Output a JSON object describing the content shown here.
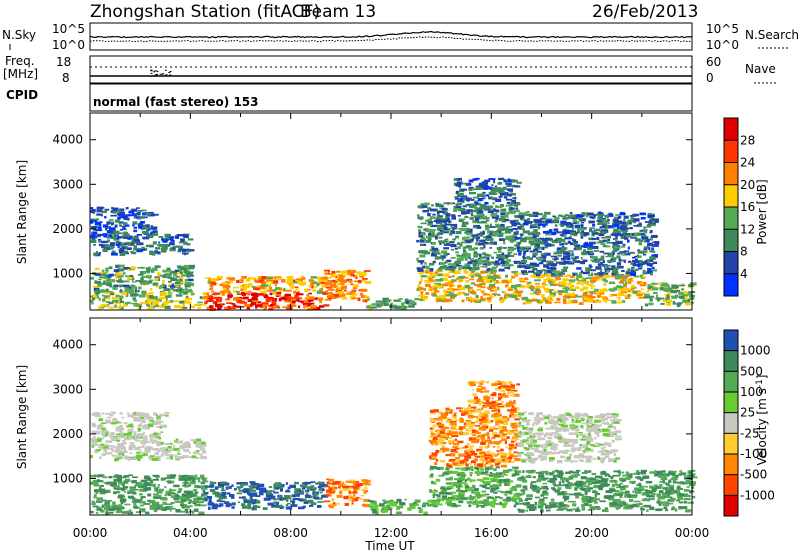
{
  "header": {
    "station": "Zhongshan Station (fitACF)",
    "beam": "Beam 13",
    "date": "26/Feb/2013"
  },
  "panels": {
    "nsky": {
      "label": "N.Sky",
      "left_ticks": [
        "10^5",
        "10^0"
      ],
      "right_label": "N.Search",
      "right_ticks": [
        "10^5",
        "10^0"
      ]
    },
    "freq": {
      "label_line1": "Freq.",
      "label_line2": "[MHz]",
      "left_ticks": [
        "18",
        "8"
      ],
      "right_label": "Nave",
      "right_ticks": [
        "60",
        "0"
      ]
    },
    "cpid": {
      "label": "CPID",
      "text": "normal (fast stereo) 153"
    }
  },
  "chart_data": [
    {
      "type": "heatmap",
      "name": "power",
      "ylabel": "Slant Range [km]",
      "xlabel": "",
      "ylim": [
        180,
        4600
      ],
      "y_ticks": [
        1000,
        2000,
        3000,
        4000
      ],
      "xlim_hours": [
        0,
        24
      ],
      "colorbar": {
        "label": "Power [dB]",
        "range": [
          0,
          32
        ],
        "tick_values": [
          4,
          8,
          12,
          16,
          20,
          24,
          28
        ],
        "tick_labels": [
          "4",
          "8",
          "12",
          "16",
          "20",
          "24",
          "28"
        ],
        "colors": [
          "#0033ff",
          "#2244aa",
          "#3f8a5a",
          "#55aa55",
          "#ffcc00",
          "#ff7f00",
          "#ff3300",
          "#e00000"
        ]
      },
      "regions": [
        {
          "t": [
            0.0,
            4.0
          ],
          "r": [
            1450,
            1900
          ],
          "power": 7
        },
        {
          "t": [
            0.0,
            2.5
          ],
          "r": [
            1900,
            2500
          ],
          "power": 6
        },
        {
          "t": [
            0.0,
            4.0
          ],
          "r": [
            600,
            1200
          ],
          "power": 12
        },
        {
          "t": [
            0.0,
            4.5
          ],
          "r": [
            250,
            600
          ],
          "power": 15
        },
        {
          "t": [
            4.5,
            9.3
          ],
          "r": [
            220,
            600
          ],
          "power": 27
        },
        {
          "t": [
            4.5,
            9.3
          ],
          "r": [
            600,
            950
          ],
          "power": 20
        },
        {
          "t": [
            9.3,
            11.0
          ],
          "r": [
            400,
            1100
          ],
          "power": 22
        },
        {
          "t": [
            11.0,
            13.0
          ],
          "r": [
            250,
            500
          ],
          "power": 12
        },
        {
          "t": [
            13.0,
            17.0
          ],
          "r": [
            400,
            1100
          ],
          "power": 18
        },
        {
          "t": [
            13.0,
            17.0
          ],
          "r": [
            1100,
            2600
          ],
          "power": 10
        },
        {
          "t": [
            14.5,
            17.0
          ],
          "r": [
            2600,
            3150
          ],
          "power": 7
        },
        {
          "t": [
            17.0,
            22.0
          ],
          "r": [
            350,
            1000
          ],
          "power": 18
        },
        {
          "t": [
            17.0,
            22.5
          ],
          "r": [
            1000,
            2400
          ],
          "power": 8
        },
        {
          "t": [
            22.0,
            24.0
          ],
          "r": [
            300,
            800
          ],
          "power": 13
        }
      ]
    },
    {
      "type": "heatmap",
      "name": "velocity",
      "ylabel": "Slant Range [km]",
      "xlabel": "Time UT",
      "ylim": [
        180,
        4600
      ],
      "y_ticks": [
        1000,
        2000,
        3000,
        4000
      ],
      "xlim_hours": [
        0,
        24
      ],
      "x_ticks": [
        "00:00",
        "04:00",
        "08:00",
        "12:00",
        "16:00",
        "20:00",
        "00:00"
      ],
      "colorbar": {
        "label": "Velocity [m s-1]",
        "levels": [
          1000,
          500,
          100,
          25,
          -25,
          -100,
          -500,
          -1000
        ],
        "tick_labels": [
          "1000",
          "500",
          "100",
          "25",
          "-25",
          "-100",
          "-500",
          "-1000"
        ],
        "colors": [
          "#2050b0",
          "#3f8a5a",
          "#55aa55",
          "#66cc33",
          "#c8c8c0",
          "#ffcc33",
          "#ff8800",
          "#ff4400",
          "#e00000"
        ]
      },
      "regions": [
        {
          "t": [
            0.0,
            4.5
          ],
          "r": [
            1450,
            1900
          ],
          "vel_class": "grey"
        },
        {
          "t": [
            0.0,
            3.0
          ],
          "r": [
            1900,
            2500
          ],
          "vel_class": "grey"
        },
        {
          "t": [
            0.0,
            4.5
          ],
          "r": [
            250,
            1100
          ],
          "vel_class": "green"
        },
        {
          "t": [
            4.5,
            9.3
          ],
          "r": [
            350,
            950
          ],
          "vel_class": "blue"
        },
        {
          "t": [
            9.3,
            11.0
          ],
          "r": [
            400,
            1000
          ],
          "vel_class": "orange"
        },
        {
          "t": [
            11.0,
            13.5
          ],
          "r": [
            250,
            550
          ],
          "vel_class": "lightgreen"
        },
        {
          "t": [
            13.5,
            17.0
          ],
          "r": [
            400,
            1300
          ],
          "vel_class": "lightgreen"
        },
        {
          "t": [
            13.5,
            17.0
          ],
          "r": [
            1300,
            2600
          ],
          "vel_class": "orange"
        },
        {
          "t": [
            15.0,
            17.0
          ],
          "r": [
            2600,
            3200
          ],
          "vel_class": "orange"
        },
        {
          "t": [
            17.0,
            24.0
          ],
          "r": [
            300,
            1200
          ],
          "vel_class": "green"
        },
        {
          "t": [
            17.0,
            21.0
          ],
          "r": [
            1400,
            2500
          ],
          "vel_class": "grey"
        }
      ]
    }
  ]
}
